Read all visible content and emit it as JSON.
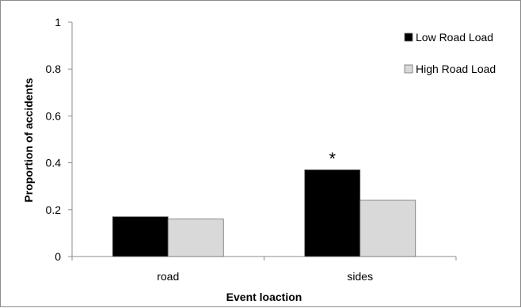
{
  "chart_data": {
    "type": "bar",
    "categories": [
      "road",
      "sides"
    ],
    "series": [
      {
        "name": "Low Road Load",
        "values": [
          0.17,
          0.37
        ],
        "color": "#000000"
      },
      {
        "name": "High Road Load",
        "values": [
          0.16,
          0.24
        ],
        "color": "#d9d9d9"
      }
    ],
    "xlabel": "Event loaction",
    "ylabel": "Proportion of accidents",
    "ylim": [
      0,
      1
    ],
    "yticks": [
      "0",
      "0.2",
      "0.4",
      "0.6",
      "0.8",
      "1"
    ],
    "grid": false,
    "legend_position": "top-right",
    "annotations": [
      {
        "text": "*",
        "category": "sides",
        "value": 0.44
      }
    ]
  }
}
